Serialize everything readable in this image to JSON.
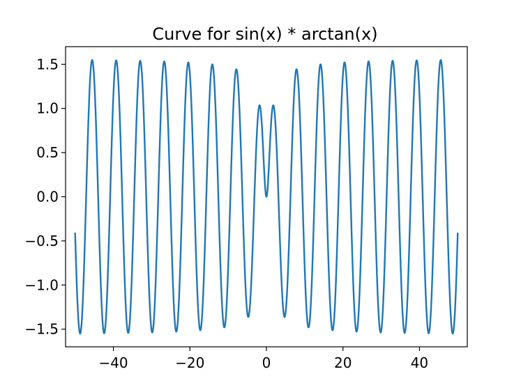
{
  "chart_data": {
    "type": "line",
    "title": "Curve for sin(x) * arctan(x)",
    "xlabel": "",
    "ylabel": "",
    "xlim": [
      -52.5,
      52.5
    ],
    "ylim": [
      -1.7,
      1.7
    ],
    "x_ticks": [
      -40,
      -20,
      0,
      20,
      40
    ],
    "x_tick_labels": [
      "−40",
      "−20",
      "0",
      "20",
      "40"
    ],
    "y_ticks": [
      -1.5,
      -1.0,
      -0.5,
      0.0,
      0.5,
      1.0,
      1.5
    ],
    "y_tick_labels": [
      "−1.5",
      "−1.0",
      "−0.5",
      "0.0",
      "0.5",
      "1.0",
      "1.5"
    ],
    "grid": false,
    "legend": "none",
    "series": [
      {
        "function": "sin(x) * arctan(x)",
        "x_range": [
          -50,
          50
        ],
        "samples": 2000,
        "color": "#1f77b4"
      }
    ]
  }
}
